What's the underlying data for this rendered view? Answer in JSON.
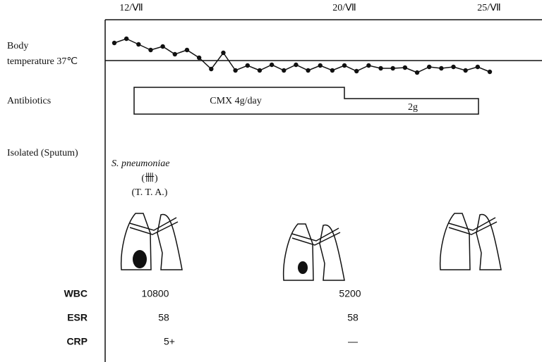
{
  "dates": [
    "12/Ⅶ",
    "20/Ⅶ",
    "25/Ⅶ"
  ],
  "rows": {
    "body": "Body",
    "temperature": "temperature 37℃",
    "antibiotics": "Antibiotics",
    "isolated": "Isolated (Sputum)"
  },
  "antibiotics": {
    "first": "CMX 4g/day",
    "second": "2g"
  },
  "isolate": {
    "organism": "S. pneumoniae",
    "grade": "(卌)",
    "source": "(T. T. A.)"
  },
  "labs": {
    "labels": [
      "WBC",
      "ESR",
      "CRP"
    ],
    "columns": [
      [
        "10800",
        "58",
        "5+"
      ],
      [
        "5200",
        "58",
        "—"
      ]
    ]
  }
}
